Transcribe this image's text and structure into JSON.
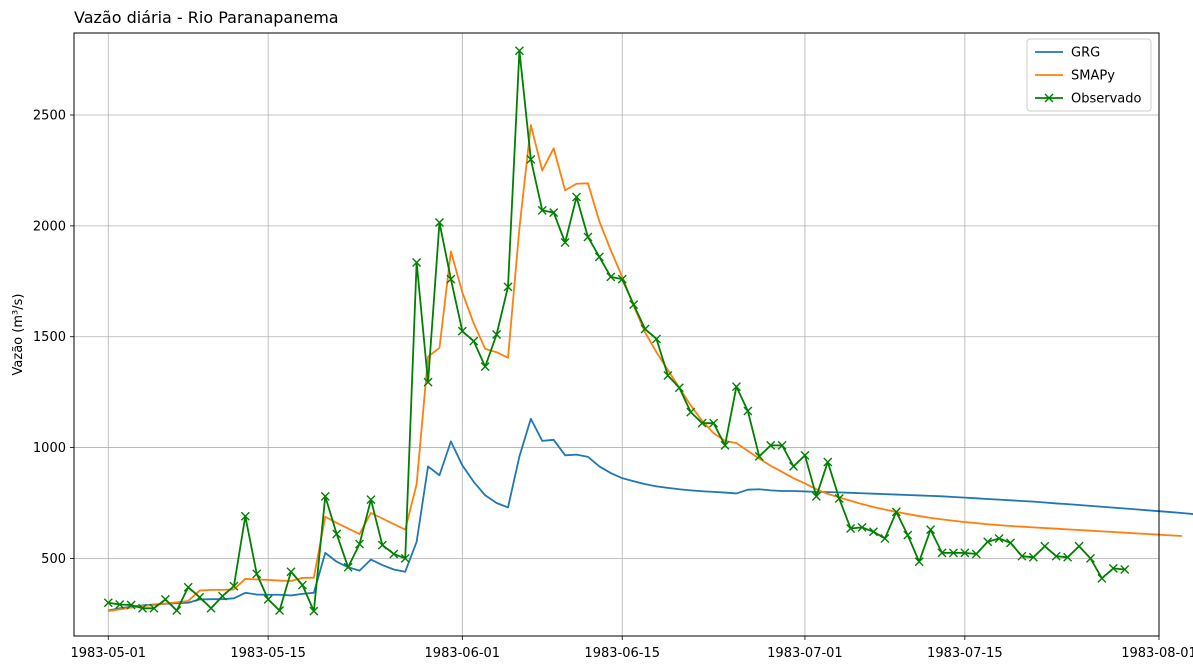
{
  "chart_data": {
    "type": "line",
    "title": "Vazão diária - Rio Paranapanema",
    "xlabel": "",
    "ylabel": "Vazão (m³/s)",
    "x_start": "1983-05-01",
    "x_range": [
      "1983-04-28",
      "1983-08-01"
    ],
    "ylim": [
      150,
      2870
    ],
    "x_ticks": [
      "1983-05-01",
      "1983-05-15",
      "1983-06-01",
      "1983-06-15",
      "1983-07-01",
      "1983-07-15",
      "1983-08-01"
    ],
    "y_ticks": [
      500,
      1000,
      1500,
      2000,
      2500
    ],
    "grid": true,
    "legend_position": "top-right",
    "series": [
      {
        "name": "GRG",
        "color": "#1f77b4",
        "marker": "none",
        "values": [
          265,
          275,
          282,
          288,
          292,
          295,
          298,
          300,
          315,
          316,
          316,
          320,
          345,
          337,
          336,
          336,
          333,
          340,
          345,
          525,
          485,
          460,
          445,
          495,
          470,
          450,
          440,
          575,
          915,
          875,
          1028,
          920,
          845,
          785,
          750,
          730,
          960,
          1130,
          1030,
          1035,
          965,
          968,
          958,
          915,
          885,
          862,
          848,
          835,
          825,
          818,
          812,
          807,
          803,
          800,
          797,
          793,
          810,
          812,
          807,
          804,
          804,
          802,
          800,
          799,
          798,
          796,
          794,
          792,
          790,
          788,
          786,
          784,
          782,
          780,
          777,
          774,
          771,
          768,
          765,
          762,
          759,
          756,
          752,
          748,
          745,
          741,
          737,
          733,
          729,
          725,
          721,
          717,
          713,
          709,
          705,
          700
        ]
      },
      {
        "name": "SMAPy",
        "color": "#ff7f0e",
        "marker": "none",
        "values": [
          262,
          270,
          278,
          285,
          290,
          296,
          302,
          308,
          355,
          358,
          358,
          360,
          408,
          405,
          403,
          400,
          398,
          412,
          413,
          688,
          660,
          635,
          610,
          705,
          680,
          655,
          630,
          835,
          1410,
          1450,
          1885,
          1700,
          1560,
          1445,
          1430,
          1405,
          1990,
          2455,
          2250,
          2350,
          2160,
          2190,
          2192,
          2020,
          1890,
          1770,
          1640,
          1520,
          1430,
          1350,
          1270,
          1190,
          1120,
          1065,
          1030,
          1020,
          985,
          950,
          918,
          890,
          862,
          838,
          812,
          791,
          775,
          760,
          745,
          732,
          720,
          710,
          700,
          691,
          683,
          676,
          670,
          664,
          659,
          654,
          650,
          646,
          643,
          640,
          637,
          634,
          631,
          628,
          625,
          622,
          619,
          616,
          613,
          610,
          607,
          604,
          601
        ]
      },
      {
        "name": "Observado",
        "color": "#008000",
        "marker": "x",
        "values": [
          300,
          292,
          290,
          275,
          275,
          315,
          265,
          370,
          325,
          275,
          330,
          375,
          690,
          430,
          315,
          265,
          440,
          380,
          262,
          780,
          610,
          460,
          565,
          765,
          560,
          520,
          500,
          1835,
          1295,
          2015,
          1760,
          1525,
          1480,
          1365,
          1510,
          1725,
          2790,
          2300,
          2070,
          2060,
          1925,
          2130,
          1950,
          1860,
          1770,
          1760,
          1645,
          1535,
          1490,
          1325,
          1270,
          1160,
          1110,
          1110,
          1010,
          1275,
          1165,
          960,
          1010,
          1010,
          915,
          965,
          780,
          935,
          770,
          635,
          640,
          620,
          590,
          710,
          605,
          485,
          630,
          525,
          525,
          525,
          520,
          575,
          590,
          570,
          510,
          505,
          555,
          510,
          505,
          555,
          500,
          410,
          455,
          450
        ]
      }
    ]
  }
}
